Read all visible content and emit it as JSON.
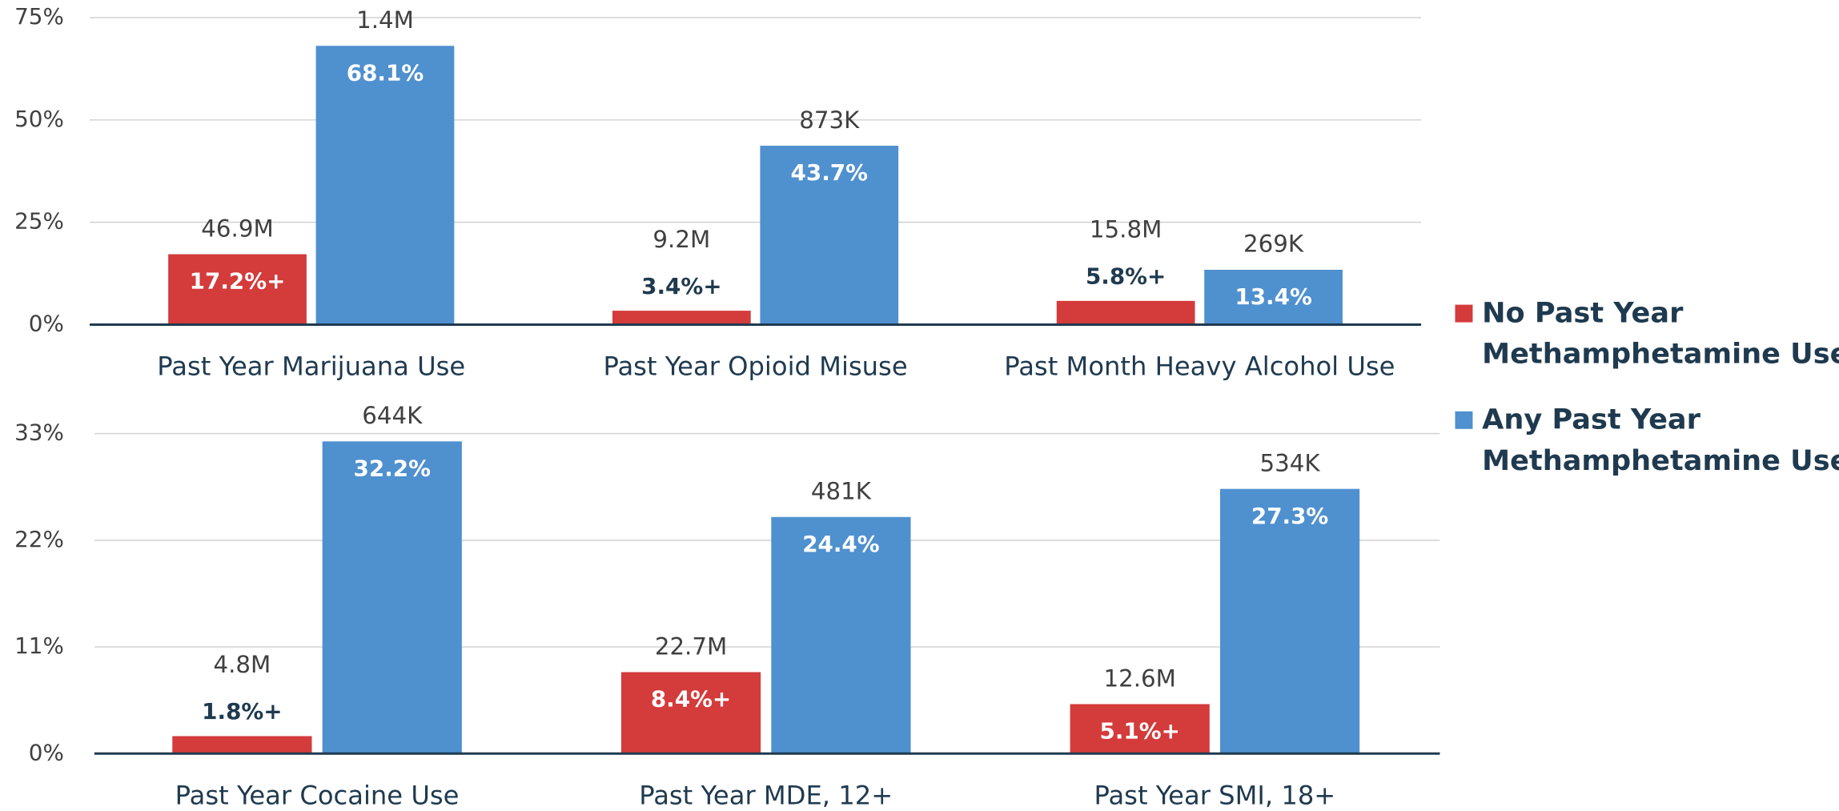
{
  "chart_data": [
    {
      "type": "bar",
      "categories": [
        "Past Year Marijuana Use",
        "Past Year Opioid Misuse",
        "Past Month Heavy Alcohol Use"
      ],
      "series": [
        {
          "name": "No Past Year Methamphetamine Use",
          "color": "#d43b3b",
          "values": [
            17.2,
            3.4,
            5.8
          ],
          "value_labels": [
            "17.2%+",
            "3.4%+",
            "5.8%+"
          ],
          "count_labels": [
            "46.9M",
            "9.2M",
            "15.8M"
          ]
        },
        {
          "name": "Any Past Year Methamphetamine Use",
          "color": "#4f90cf",
          "values": [
            68.1,
            43.7,
            13.4
          ],
          "value_labels": [
            "68.1%",
            "43.7%",
            "13.4%"
          ],
          "count_labels": [
            "1.4M",
            "873K",
            "269K"
          ]
        }
      ],
      "ylim": [
        0,
        75
      ],
      "yticks": [
        {
          "value": 0,
          "label": "0%"
        },
        {
          "value": 25,
          "label": "25%"
        },
        {
          "value": 50,
          "label": "50%"
        },
        {
          "value": 75,
          "label": "75%"
        }
      ],
      "grid": true
    },
    {
      "type": "bar",
      "categories": [
        "Past Year Cocaine Use",
        "Past Year MDE, 12+",
        "Past Year SMI, 18+"
      ],
      "series": [
        {
          "color": "#d43b3b",
          "values": [
            1.8,
            8.4,
            5.1
          ],
          "value_labels": [
            "1.8%+",
            "8.4%+",
            "5.1%+"
          ],
          "count_labels": [
            "4.8M",
            "22.7M",
            "12.6M"
          ]
        },
        {
          "color": "#4f90cf",
          "values": [
            32.2,
            24.4,
            27.3
          ],
          "value_labels": [
            "32.2%",
            "24.4%",
            "27.3%"
          ],
          "count_labels": [
            "644K",
            "481K",
            "534K"
          ]
        }
      ],
      "ylim": [
        0,
        33
      ],
      "yticks": [
        {
          "value": 0,
          "label": "0%"
        },
        {
          "value": 11,
          "label": "11%"
        },
        {
          "value": 22,
          "label": "22%"
        },
        {
          "value": 33,
          "label": "33%"
        }
      ],
      "grid": true
    }
  ]
}
